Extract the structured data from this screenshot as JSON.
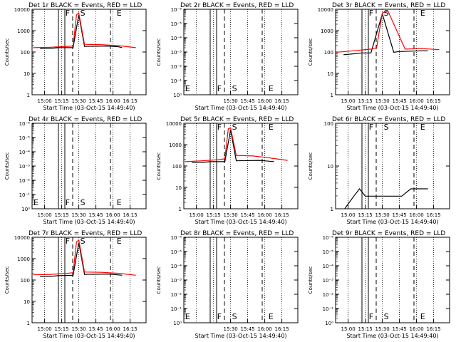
{
  "chart_data": [
    {
      "type": "line",
      "title": "Det 1r BLACK = Events, RED = LLD",
      "xlabel": "Start Time (03-Oct-15 14:49:40)",
      "ylabel": "Counts/sec",
      "x_ticks": [
        "15:00",
        "15:15",
        "15:30",
        "15:45",
        "16:00",
        "16:15"
      ],
      "y_scale": "log",
      "y_ticks": [
        "1",
        "10",
        "100",
        "1000",
        "10000"
      ],
      "ylim": [
        1,
        15000
      ],
      "markers": [
        {
          "label": "F",
          "x": "15:17"
        },
        {
          "label": "S",
          "x": "15:30"
        },
        {
          "label": "E",
          "x": "16:02"
        }
      ],
      "series": [
        {
          "name": "Events",
          "color": "#000000",
          "x": [
            "14:56",
            "15:08",
            "15:12",
            "15:25",
            "15:30",
            "15:35",
            "15:55",
            "16:00",
            "16:05",
            "16:08"
          ],
          "values": [
            180,
            190,
            200,
            200,
            8000,
            230,
            240,
            230,
            220,
            200
          ]
        },
        {
          "name": "LLD",
          "color": "#ff0000",
          "x": [
            "14:50",
            "15:05",
            "15:20",
            "15:25",
            "15:28",
            "15:30",
            "15:35",
            "15:50",
            "16:05",
            "16:20"
          ],
          "values": [
            200,
            210,
            230,
            240,
            8000,
            10000,
            290,
            280,
            250,
            200
          ]
        }
      ]
    },
    {
      "type": "line",
      "title": "Det 2r BLACK = Events, RED = LLD",
      "xlabel": "Start Time (03-Oct-15 14:49:40)",
      "ylabel": "Counts/sec",
      "x_ticks": [
        "15:30",
        "15:45",
        "16:00",
        "16:15"
      ],
      "y_scale": "log",
      "y_ticks": [
        "10⁰",
        "10⁻¹",
        "10⁻²",
        "10⁻³",
        "10⁻⁴",
        "10⁻⁵",
        "10⁻⁶"
      ],
      "markers": [
        {
          "label": "E",
          "x": "14:50"
        },
        {
          "label": "F",
          "x": "15:17"
        },
        {
          "label": "S",
          "x": "15:30"
        },
        {
          "label": "E",
          "x": "16:02"
        }
      ],
      "series": []
    },
    {
      "type": "line",
      "title": "Det 3r BLACK = Events, RED = LLD",
      "xlabel": "Start Time (03-Oct-15 14:49:40)",
      "ylabel": "Counts/sec",
      "x_ticks": [
        "15:00",
        "15:15",
        "15:30",
        "15:45",
        "16:00",
        "16:15"
      ],
      "y_scale": "log",
      "y_ticks": [
        "1",
        "10",
        "100",
        "1000",
        "10000"
      ],
      "ylim": [
        1,
        15000
      ],
      "markers": [
        {
          "label": "F",
          "x": "15:17"
        },
        {
          "label": "S",
          "x": "15:30"
        },
        {
          "label": "E",
          "x": "16:02"
        }
      ],
      "series": [
        {
          "name": "Events",
          "color": "#000000",
          "x": [
            "14:56",
            "15:05",
            "15:12",
            "15:20",
            "15:30",
            "15:40",
            "15:45",
            "16:05",
            "16:10"
          ],
          "values": [
            90,
            100,
            110,
            110,
            9000,
            120,
            130,
            140,
            140
          ]
        },
        {
          "name": "LLD",
          "color": "#ff0000",
          "x": [
            "14:50",
            "15:05",
            "15:20",
            "15:25",
            "15:30",
            "15:35",
            "15:50",
            "16:05",
            "16:20"
          ],
          "values": [
            120,
            140,
            170,
            200,
            10000,
            12000,
            170,
            180,
            160
          ]
        }
      ]
    },
    {
      "type": "line",
      "title": "Det 4r BLACK = Events, RED = LLD",
      "xlabel": "Start Time (03-Oct-15 14:49:40)",
      "ylabel": "Counts/sec",
      "x_ticks": [
        "15:00",
        "15:15",
        "15:30",
        "15:45",
        "16:00",
        "16:15"
      ],
      "y_scale": "log",
      "y_ticks": [
        "10⁰",
        "10⁻¹",
        "10⁻²",
        "10⁻³",
        "10⁻⁴",
        "10⁻⁵",
        "10⁻⁶"
      ],
      "markers": [
        {
          "label": "E",
          "x": "14:50"
        },
        {
          "label": "F",
          "x": "15:17"
        },
        {
          "label": "S",
          "x": "15:30"
        },
        {
          "label": "E",
          "x": "16:02"
        }
      ],
      "series": []
    },
    {
      "type": "line",
      "title": "Det 5r BLACK = Events, RED = LLD",
      "xlabel": "Start Time (03-Oct-15 14:49:40)",
      "ylabel": "Counts/sec",
      "x_ticks": [
        "15:00",
        "15:15",
        "15:30",
        "15:45",
        "16:00",
        "16:15"
      ],
      "y_scale": "log",
      "y_ticks": [
        "1",
        "10",
        "100",
        "1000",
        "10000"
      ],
      "ylim": [
        1,
        15000
      ],
      "markers": [
        {
          "label": "F",
          "x": "15:17"
        },
        {
          "label": "S",
          "x": "15:30"
        },
        {
          "label": "E",
          "x": "16:02"
        }
      ],
      "series": [
        {
          "name": "Events",
          "color": "#000000",
          "x": [
            "14:56",
            "15:08",
            "15:12",
            "15:25",
            "15:30",
            "15:35",
            "15:55",
            "16:00",
            "16:08"
          ],
          "values": [
            180,
            190,
            200,
            200,
            7000,
            220,
            230,
            220,
            200
          ]
        },
        {
          "name": "LLD",
          "color": "#ff0000",
          "x": [
            "14:50",
            "15:05",
            "15:20",
            "15:25",
            "15:28",
            "15:30",
            "15:35",
            "15:50",
            "16:05",
            "16:20"
          ],
          "values": [
            200,
            220,
            250,
            280,
            8000,
            9000,
            400,
            380,
            300,
            230
          ]
        }
      ]
    },
    {
      "type": "line",
      "title": "Det 6r BLACK = Events, RED = LLD",
      "xlabel": "Start Time (03-Oct-15 14:49:40)",
      "ylabel": "Counts/sec",
      "x_ticks": [
        "15:00",
        "15:15",
        "15:30",
        "15:45",
        "16:00",
        "16:15"
      ],
      "y_scale": "log",
      "y_ticks": [
        "1",
        "10",
        "100"
      ],
      "ylim": [
        1,
        110
      ],
      "markers": [
        {
          "label": "F",
          "x": "15:17"
        },
        {
          "label": "S",
          "x": "15:30"
        },
        {
          "label": "E",
          "x": "16:02"
        }
      ],
      "series": [
        {
          "name": "Events",
          "color": "#000000",
          "x": [
            "14:57",
            "15:05",
            "15:10",
            "15:15",
            "15:47",
            "15:55",
            "16:00",
            "16:10"
          ],
          "values": [
            1,
            2,
            3,
            2,
            2,
            3,
            3,
            3
          ]
        }
      ]
    },
    {
      "type": "line",
      "title": "Det 7r BLACK = Events, RED = LLD",
      "xlabel": "Start Time (03-Oct-15 14:49:40)",
      "ylabel": "Counts/sec",
      "x_ticks": [
        "15:00",
        "15:15",
        "15:30",
        "15:45",
        "16:00",
        "16:15"
      ],
      "y_scale": "log",
      "y_ticks": [
        "1",
        "10",
        "100",
        "1000",
        "10000"
      ],
      "ylim": [
        1,
        15000
      ],
      "markers": [
        {
          "label": "F",
          "x": "15:17"
        },
        {
          "label": "S",
          "x": "15:30"
        },
        {
          "label": "E",
          "x": "16:02"
        }
      ],
      "series": [
        {
          "name": "Events",
          "color": "#000000",
          "x": [
            "14:56",
            "15:08",
            "15:12",
            "15:25",
            "15:30",
            "15:35",
            "15:55",
            "16:00",
            "16:08"
          ],
          "values": [
            180,
            190,
            200,
            210,
            8000,
            230,
            240,
            230,
            210
          ]
        },
        {
          "name": "LLD",
          "color": "#ff0000",
          "x": [
            "14:50",
            "15:05",
            "15:20",
            "15:25",
            "15:28",
            "15:30",
            "15:35",
            "15:50",
            "16:05",
            "16:20"
          ],
          "values": [
            220,
            230,
            260,
            280,
            9000,
            11000,
            300,
            290,
            260,
            210
          ]
        }
      ]
    },
    {
      "type": "line",
      "title": "Det 8r BLACK = Events, RED = LLD",
      "xlabel": "Start Time (03-Oct-15 14:49:40)",
      "ylabel": "Counts/sec",
      "x_ticks": [
        "15:30",
        "15:45",
        "16:00",
        "16:15"
      ],
      "y_scale": "log",
      "y_ticks": [
        "10⁰",
        "10⁻¹",
        "10⁻²",
        "10⁻³",
        "10⁻⁴",
        "10⁻⁵",
        "10⁻⁶"
      ],
      "markers": [
        {
          "label": "E",
          "x": "14:50"
        },
        {
          "label": "F",
          "x": "15:17"
        },
        {
          "label": "S",
          "x": "15:30"
        },
        {
          "label": "E",
          "x": "16:02"
        }
      ],
      "series": []
    },
    {
      "type": "line",
      "title": "Det 9r BLACK = Events, RED = LLD",
      "xlabel": "Start Time (03-Oct-15 14:49:40)",
      "ylabel": "Counts/sec",
      "x_ticks": [
        "15:00",
        "15:15",
        "15:30",
        "15:45",
        "16:00",
        "16:15"
      ],
      "y_scale": "log",
      "y_ticks": [
        "10⁰",
        "10⁻¹",
        "10⁻²",
        "10⁻³",
        "10⁻⁴",
        "10⁻⁵",
        "10⁻⁶"
      ],
      "markers": [
        {
          "label": "F",
          "x": "15:17"
        },
        {
          "label": "S",
          "x": "15:30"
        },
        {
          "label": "E",
          "x": "16:02"
        }
      ],
      "series": []
    }
  ]
}
